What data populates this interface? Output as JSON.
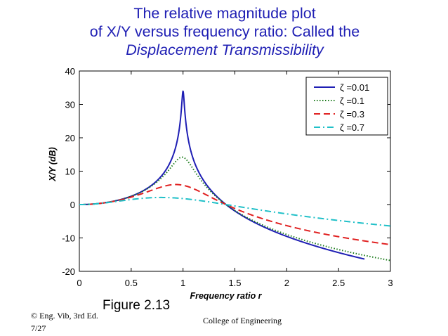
{
  "slide": {
    "title_line1": "The relative magnitude plot",
    "title_line2": "of X/Y versus frequency ratio: Called the",
    "title_line3": "Displacement Transmissibility",
    "figure_label": "Figure 2.13",
    "footer_copyright": "© Eng. Vib, 3rd Ed.",
    "footer_page": "7/27",
    "footer_center": "College of Engineering"
  },
  "chart_data": {
    "type": "line",
    "title": "",
    "xlabel": "Frequency ratio r",
    "ylabel": "X/Y (dB)",
    "xlim": [
      0,
      3
    ],
    "ylim": [
      -20,
      40
    ],
    "x_ticks": [
      0,
      0.5,
      1,
      1.5,
      2,
      2.5,
      3
    ],
    "x_tick_labels": [
      "0",
      "0.5",
      "1",
      "1.5",
      "2",
      "2.5",
      "3"
    ],
    "y_ticks": [
      40,
      30,
      20,
      10,
      0,
      -10,
      -20
    ],
    "y_tick_labels": [
      "40",
      "30",
      "20",
      "10",
      "0",
      "-10",
      "-20"
    ],
    "legend_position": "top-right",
    "series": [
      {
        "name": "ζ =0.01",
        "zeta": 0.01,
        "r_max": 2.75,
        "color": "#1f1fb4",
        "style": "solid"
      },
      {
        "name": "ζ =0.1",
        "zeta": 0.1,
        "r_max": 3.0,
        "color": "#1a7a1a",
        "style": "dotted"
      },
      {
        "name": "ζ =0.3",
        "zeta": 0.3,
        "r_max": 3.0,
        "color": "#e02020",
        "style": "dashed"
      },
      {
        "name": "ζ =0.7",
        "zeta": 0.7,
        "r_max": 3.0,
        "color": "#20c0c8",
        "style": "dashdot"
      }
    ]
  }
}
